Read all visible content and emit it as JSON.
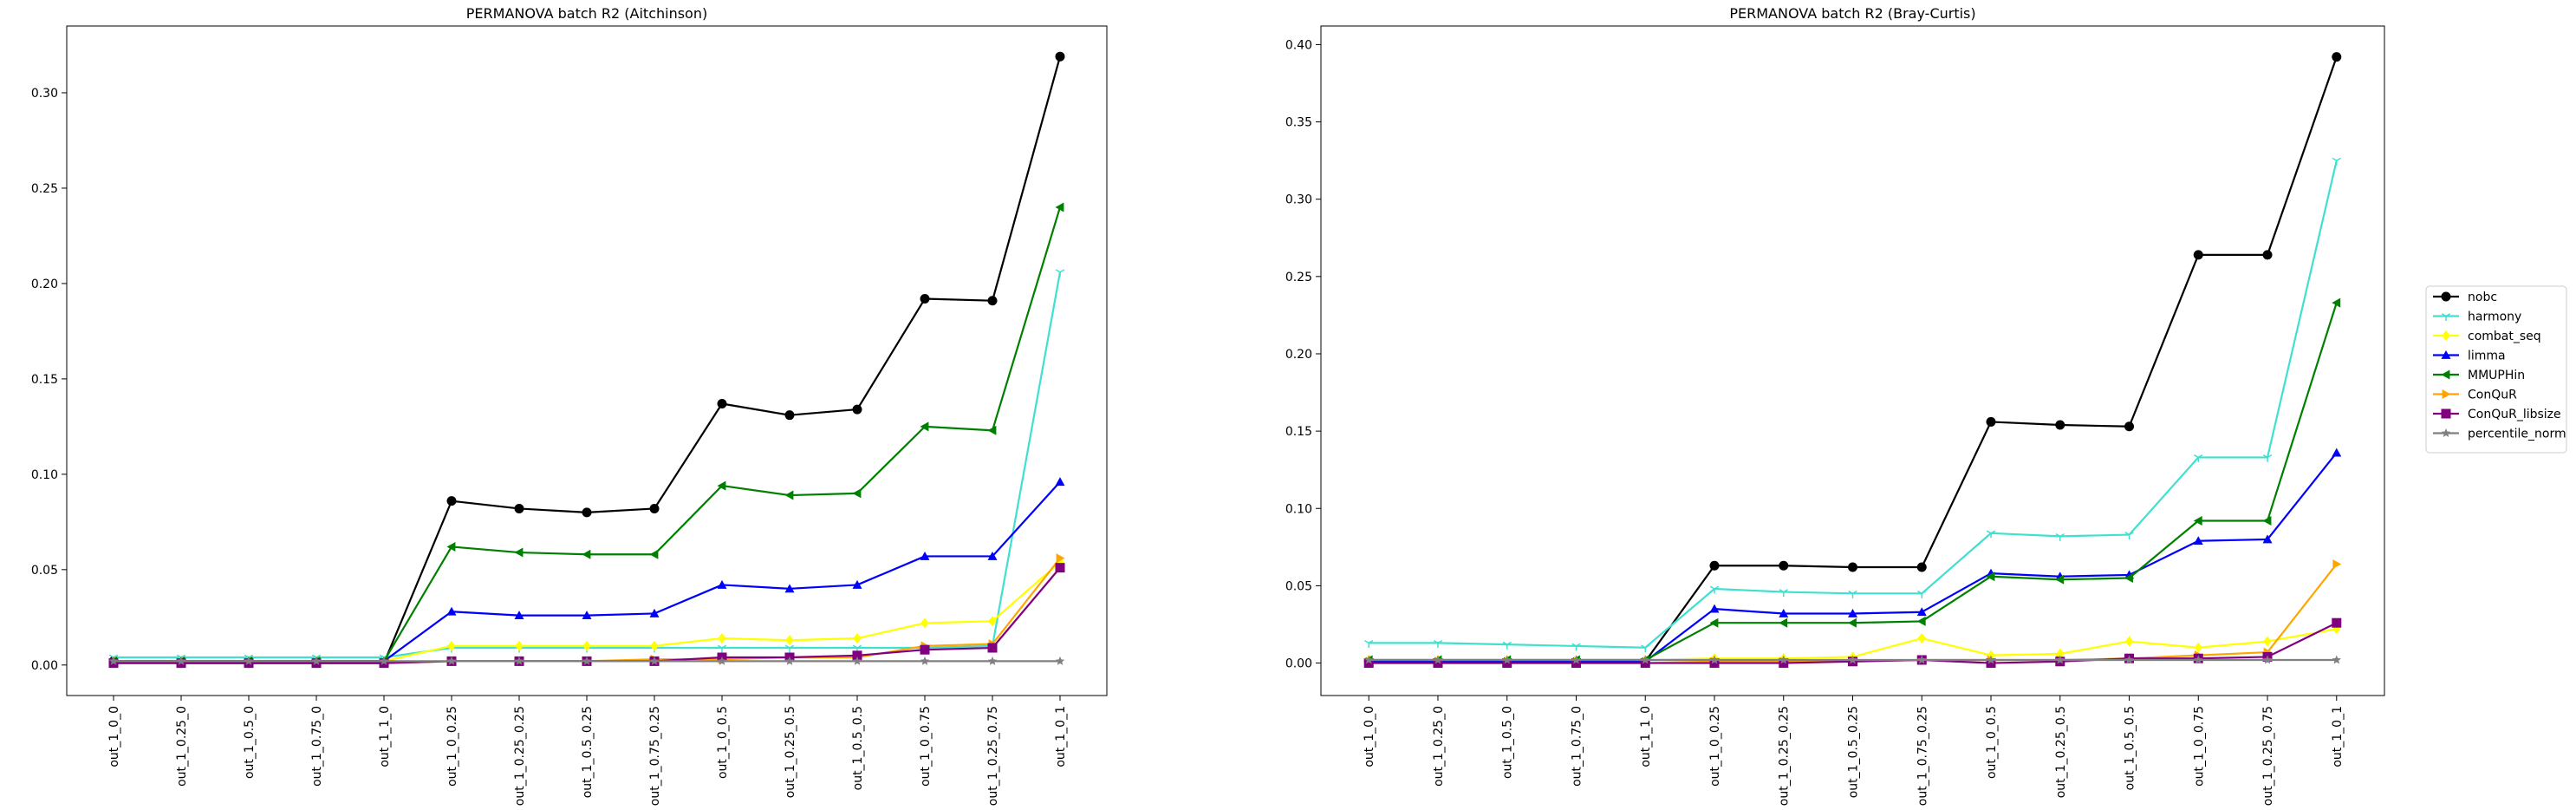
{
  "chart_data": [
    {
      "type": "line",
      "title": "PERMANOVA batch R2 (Aitchinson)",
      "xlabel": "",
      "ylabel": "",
      "categories": [
        "out_1_0_0",
        "out_1_0.25_0",
        "out_1_0.5_0",
        "out_1_0.75_0",
        "out_1_1_0",
        "out_1_0_0.25",
        "out_1_0.25_0.25",
        "out_1_0.5_0.25",
        "out_1_0.75_0.25",
        "out_1_0_0.5",
        "out_1_0.25_0.5",
        "out_1_0.5_0.5",
        "out_1_0_0.75",
        "out_1_0.25_0.75",
        "out_1_0_1"
      ],
      "ylim": [
        -0.016,
        0.335
      ],
      "yticks": [
        "0.00",
        "0.05",
        "0.10",
        "0.15",
        "0.20",
        "0.25",
        "0.30"
      ],
      "grid": false,
      "series": [
        {
          "name": "nobc",
          "color": "#000000",
          "marker": "circle",
          "values": [
            0.002,
            0.001,
            0.001,
            0.001,
            0.001,
            0.086,
            0.082,
            0.08,
            0.082,
            0.137,
            0.131,
            0.134,
            0.192,
            0.191,
            0.319
          ]
        },
        {
          "name": "harmony",
          "color": "#40e0d0",
          "marker": "tri_down",
          "values": [
            0.004,
            0.004,
            0.004,
            0.004,
            0.004,
            0.009,
            0.009,
            0.009,
            0.009,
            0.009,
            0.009,
            0.009,
            0.009,
            0.01,
            0.206
          ]
        },
        {
          "name": "combat_seq",
          "color": "#ffff00",
          "marker": "diamond",
          "values": [
            0.002,
            0.002,
            0.002,
            0.002,
            0.002,
            0.01,
            0.01,
            0.01,
            0.01,
            0.014,
            0.013,
            0.014,
            0.022,
            0.023,
            0.054
          ]
        },
        {
          "name": "limma",
          "color": "#0000ff",
          "marker": "triangle_up",
          "values": [
            0.002,
            0.002,
            0.002,
            0.002,
            0.002,
            0.028,
            0.026,
            0.026,
            0.027,
            0.042,
            0.04,
            0.042,
            0.057,
            0.057,
            0.096
          ]
        },
        {
          "name": "MMUPHin",
          "color": "#008000",
          "marker": "triangle_left",
          "values": [
            0.002,
            0.002,
            0.002,
            0.002,
            0.002,
            0.062,
            0.059,
            0.058,
            0.058,
            0.094,
            0.089,
            0.09,
            0.125,
            0.123,
            0.24
          ]
        },
        {
          "name": "ConQuR",
          "color": "#ffa500",
          "marker": "triangle_right",
          "values": [
            0.001,
            0.001,
            0.001,
            0.001,
            0.001,
            0.002,
            0.002,
            0.002,
            0.003,
            0.003,
            0.004,
            0.004,
            0.01,
            0.011,
            0.056
          ]
        },
        {
          "name": "ConQuR_libsize",
          "color": "#800080",
          "marker": "square",
          "values": [
            0.001,
            0.001,
            0.001,
            0.001,
            0.001,
            0.002,
            0.002,
            0.002,
            0.002,
            0.004,
            0.004,
            0.005,
            0.008,
            0.009,
            0.051
          ]
        },
        {
          "name": "percentile_norm",
          "color": "#808080",
          "marker": "star",
          "values": [
            0.002,
            0.002,
            0.002,
            0.002,
            0.002,
            0.002,
            0.002,
            0.002,
            0.002,
            0.002,
            0.002,
            0.002,
            0.002,
            0.002,
            0.002
          ]
        }
      ]
    },
    {
      "type": "line",
      "title": "PERMANOVA batch R2 (Bray-Curtis)",
      "xlabel": "",
      "ylabel": "",
      "categories": [
        "out_1_0_0",
        "out_1_0.25_0",
        "out_1_0.5_0",
        "out_1_0.75_0",
        "out_1_1_0",
        "out_1_0_0.25",
        "out_1_0.25_0.25",
        "out_1_0.5_0.25",
        "out_1_0.75_0.25",
        "out_1_0_0.5",
        "out_1_0.25_0.5",
        "out_1_0.5_0.5",
        "out_1_0_0.75",
        "out_1_0.25_0.75",
        "out_1_0_1"
      ],
      "ylim": [
        -0.021,
        0.412
      ],
      "yticks": [
        "0.00",
        "0.05",
        "0.10",
        "0.15",
        "0.20",
        "0.25",
        "0.30",
        "0.35",
        "0.40"
      ],
      "grid": false,
      "series": [
        {
          "name": "nobc",
          "color": "#000000",
          "marker": "circle",
          "values": [
            0.001,
            0.001,
            0.001,
            0.001,
            0.001,
            0.063,
            0.063,
            0.062,
            0.062,
            0.156,
            0.154,
            0.153,
            0.264,
            0.264,
            0.392
          ]
        },
        {
          "name": "harmony",
          "color": "#40e0d0",
          "marker": "tri_down",
          "values": [
            0.013,
            0.013,
            0.012,
            0.011,
            0.01,
            0.048,
            0.046,
            0.045,
            0.045,
            0.084,
            0.082,
            0.083,
            0.133,
            0.133,
            0.325
          ]
        },
        {
          "name": "combat_seq",
          "color": "#ffff00",
          "marker": "diamond",
          "values": [
            0.002,
            0.002,
            0.002,
            0.002,
            0.002,
            0.003,
            0.003,
            0.004,
            0.016,
            0.005,
            0.006,
            0.014,
            0.01,
            0.014,
            0.022
          ]
        },
        {
          "name": "limma",
          "color": "#0000ff",
          "marker": "triangle_up",
          "values": [
            0.001,
            0.001,
            0.001,
            0.001,
            0.001,
            0.035,
            0.032,
            0.032,
            0.033,
            0.058,
            0.056,
            0.057,
            0.079,
            0.08,
            0.136
          ]
        },
        {
          "name": "MMUPHin",
          "color": "#008000",
          "marker": "triangle_left",
          "values": [
            0.002,
            0.002,
            0.002,
            0.002,
            0.002,
            0.026,
            0.026,
            0.026,
            0.027,
            0.056,
            0.054,
            0.055,
            0.092,
            0.092,
            0.233
          ]
        },
        {
          "name": "ConQuR",
          "color": "#ffa500",
          "marker": "triangle_right",
          "values": [
            0.0,
            0.0,
            0.0,
            0.0,
            0.0,
            0.001,
            0.001,
            0.001,
            0.002,
            0.002,
            0.002,
            0.003,
            0.005,
            0.007,
            0.064
          ]
        },
        {
          "name": "ConQuR_libsize",
          "color": "#800080",
          "marker": "square",
          "values": [
            0.0,
            0.0,
            0.0,
            0.0,
            0.0,
            0.0,
            0.0,
            0.001,
            0.002,
            0.0,
            0.001,
            0.003,
            0.003,
            0.004,
            0.026
          ]
        },
        {
          "name": "percentile_norm",
          "color": "#808080",
          "marker": "star",
          "values": [
            0.002,
            0.002,
            0.002,
            0.002,
            0.002,
            0.002,
            0.002,
            0.002,
            0.002,
            0.002,
            0.002,
            0.002,
            0.002,
            0.002,
            0.002
          ]
        }
      ]
    }
  ],
  "legend": {
    "placement": "center-right",
    "entries": [
      "nobc",
      "harmony",
      "combat_seq",
      "limma",
      "MMUPHin",
      "ConQuR",
      "ConQuR_libsize",
      "percentile_norm"
    ]
  }
}
